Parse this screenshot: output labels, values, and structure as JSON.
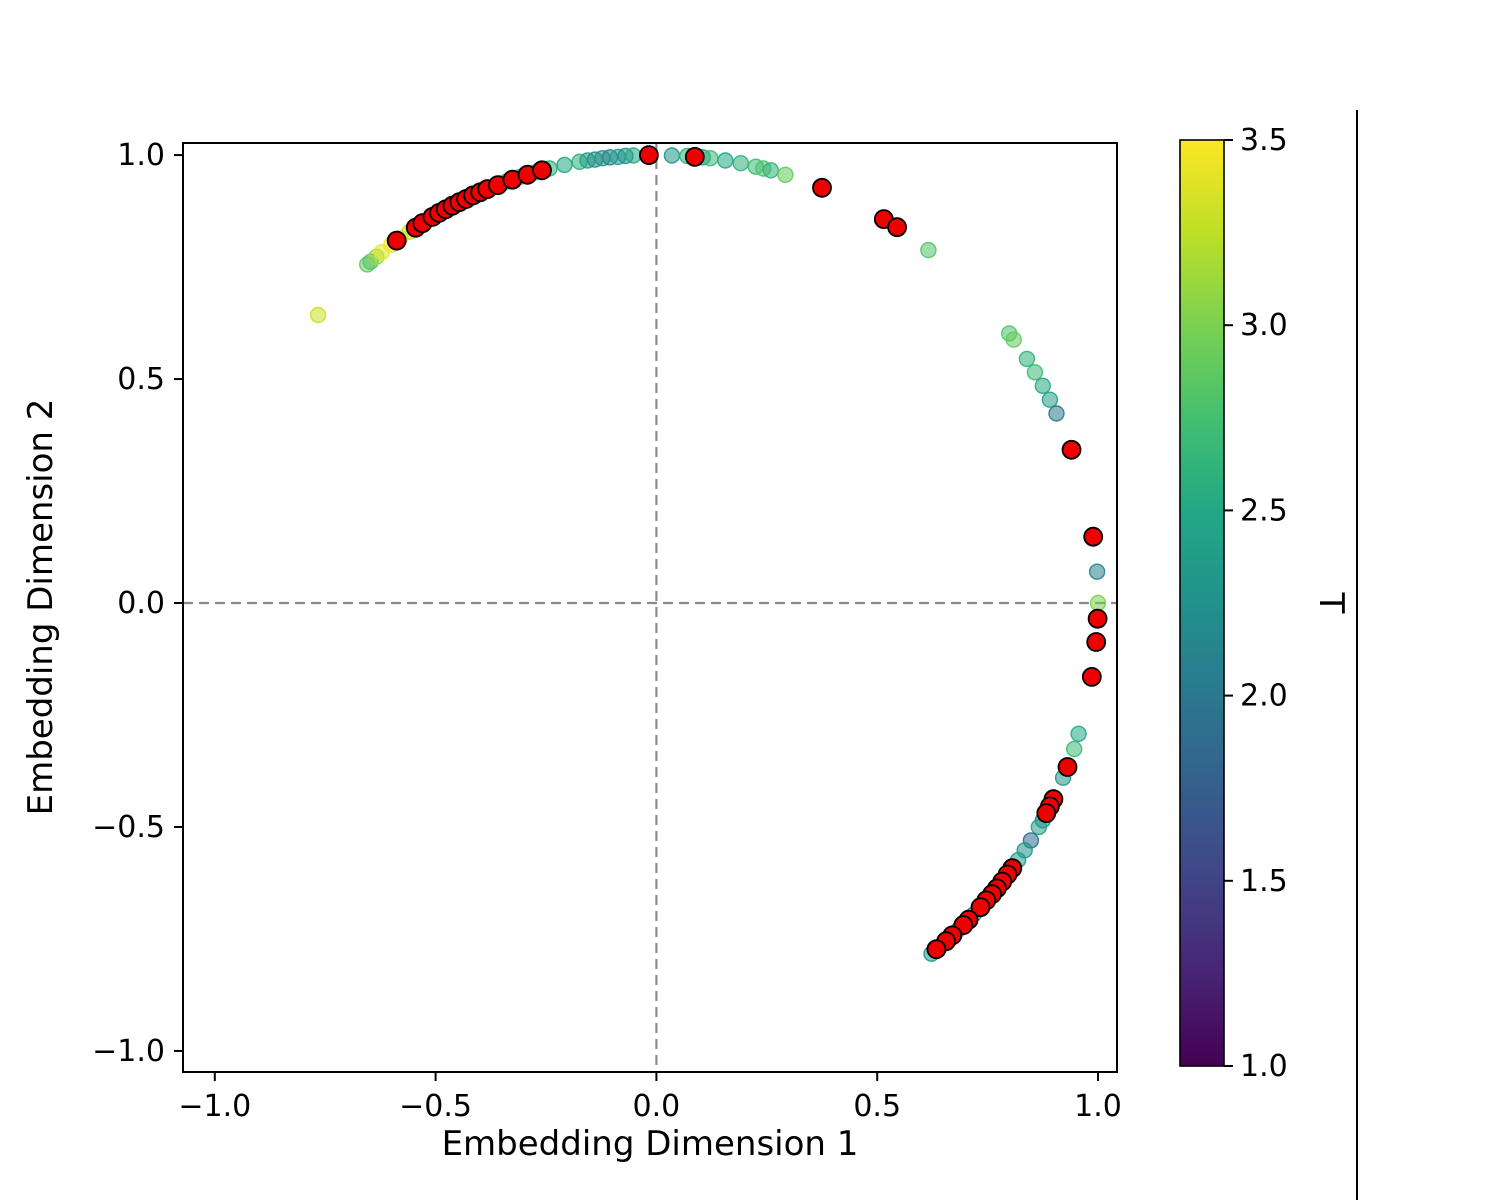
{
  "figure": {
    "background": "#ffffff"
  },
  "chart_data": {
    "type": "scatter",
    "title": "",
    "xlabel": "Embedding Dimension 1",
    "ylabel": "Embedding Dimension 2",
    "xlim": [
      -1.072,
      1.043
    ],
    "ylim": [
      -1.047,
      1.027
    ],
    "grid": false,
    "zero_lines": {
      "color": "#8a8a8a",
      "style": "dashed"
    },
    "xticks": {
      "values": [
        -1.0,
        -0.5,
        0.0,
        0.5,
        1.0
      ],
      "labels": [
        "−1.0",
        "−0.5",
        "0.0",
        "0.5",
        "1.0"
      ]
    },
    "yticks": {
      "values": [
        -1.0,
        -0.5,
        0.0,
        0.5,
        1.0
      ],
      "labels": [
        "−1.0",
        "−0.5",
        "0.0",
        "0.5",
        "1.0"
      ]
    },
    "colorbar": {
      "label": "T",
      "vmin": 1.0,
      "vmax": 3.5,
      "ticks": [
        1.0,
        1.5,
        2.0,
        2.5,
        3.0,
        3.5
      ],
      "tick_labels": [
        "1.0",
        "1.5",
        "2.0",
        "2.5",
        "3.0",
        "3.5"
      ],
      "colormap": "viridis",
      "position": "right"
    },
    "colormap_stops": [
      [
        0.0,
        "#440154"
      ],
      [
        0.1,
        "#482475"
      ],
      [
        0.2,
        "#414487"
      ],
      [
        0.3,
        "#355f8d"
      ],
      [
        0.4,
        "#2a788e"
      ],
      [
        0.5,
        "#21918c"
      ],
      [
        0.6,
        "#22a884"
      ],
      [
        0.7,
        "#44bf70"
      ],
      [
        0.8,
        "#7ad151"
      ],
      [
        0.9,
        "#bddf26"
      ],
      [
        1.0,
        "#fde725"
      ]
    ],
    "series": [
      {
        "name": "embedding-points",
        "marker": "circle",
        "alpha": 0.55,
        "colored_by": "T",
        "format": [
          "x",
          "y",
          "T"
        ],
        "points": [
          [
            -0.766,
            0.643,
            3.3
          ],
          [
            -0.655,
            0.756,
            2.9
          ],
          [
            -0.647,
            0.762,
            2.8
          ],
          [
            -0.634,
            0.773,
            3.1
          ],
          [
            -0.622,
            0.783,
            3.4
          ],
          [
            -0.6,
            0.8,
            3.45
          ],
          [
            -0.58,
            0.815,
            3.4
          ],
          [
            -0.559,
            0.829,
            3.3
          ],
          [
            -0.545,
            0.838,
            3.2
          ],
          [
            -0.53,
            0.848,
            3.35
          ],
          [
            -0.515,
            0.857,
            3.1
          ],
          [
            -0.5,
            0.866,
            3.0
          ],
          [
            -0.485,
            0.875,
            3.2
          ],
          [
            -0.469,
            0.883,
            3.1
          ],
          [
            -0.454,
            0.891,
            3.0
          ],
          [
            -0.438,
            0.899,
            2.9
          ],
          [
            -0.423,
            0.906,
            3.0
          ],
          [
            -0.407,
            0.914,
            2.9
          ],
          [
            -0.391,
            0.92,
            2.8
          ],
          [
            -0.375,
            0.927,
            2.9
          ],
          [
            -0.342,
            0.94,
            2.8
          ],
          [
            -0.309,
            0.951,
            2.7
          ],
          [
            -0.276,
            0.961,
            2.8
          ],
          [
            -0.242,
            0.97,
            2.6
          ],
          [
            -0.208,
            0.978,
            2.5
          ],
          [
            -0.174,
            0.985,
            2.6
          ],
          [
            -0.156,
            0.988,
            2.4
          ],
          [
            -0.139,
            0.99,
            2.2
          ],
          [
            -0.122,
            0.993,
            2.3
          ],
          [
            -0.105,
            0.995,
            2.1
          ],
          [
            -0.087,
            0.996,
            2.4
          ],
          [
            -0.07,
            0.998,
            2.2
          ],
          [
            -0.052,
            0.999,
            2.5
          ],
          [
            0.035,
            0.999,
            2.3
          ],
          [
            0.07,
            0.998,
            2.6
          ],
          [
            0.105,
            0.995,
            2.4
          ],
          [
            0.122,
            0.993,
            2.7
          ],
          [
            0.156,
            0.988,
            2.5
          ],
          [
            0.191,
            0.982,
            2.6
          ],
          [
            0.225,
            0.974,
            2.7
          ],
          [
            0.242,
            0.97,
            2.8
          ],
          [
            0.259,
            0.966,
            2.6
          ],
          [
            0.292,
            0.956,
            2.9
          ],
          [
            0.616,
            0.788,
            2.8
          ],
          [
            0.799,
            0.602,
            2.8
          ],
          [
            0.809,
            0.588,
            2.9
          ],
          [
            0.839,
            0.545,
            2.6
          ],
          [
            0.857,
            0.515,
            2.7
          ],
          [
            0.875,
            0.485,
            2.5
          ],
          [
            0.891,
            0.454,
            2.4
          ],
          [
            0.906,
            0.423,
            2.0
          ],
          [
            0.998,
            0.07,
            2.1
          ],
          [
            1.0,
            0.0,
            3.0
          ],
          [
            0.956,
            -0.292,
            2.5
          ],
          [
            0.946,
            -0.326,
            2.7
          ],
          [
            0.921,
            -0.39,
            2.3
          ],
          [
            0.899,
            -0.438,
            2.4
          ],
          [
            0.875,
            -0.485,
            2.2
          ],
          [
            0.866,
            -0.5,
            2.4
          ],
          [
            0.848,
            -0.53,
            1.9
          ],
          [
            0.834,
            -0.552,
            2.3
          ],
          [
            0.819,
            -0.574,
            2.4
          ],
          [
            0.719,
            -0.695,
            2.3
          ],
          [
            0.682,
            -0.731,
            2.4
          ],
          [
            0.643,
            -0.766,
            2.2
          ],
          [
            0.623,
            -0.783,
            2.3
          ]
        ]
      },
      {
        "name": "highlighted-points",
        "marker": "circle",
        "color": "#ee0000",
        "edge_color": "#000000",
        "format": [
          "x",
          "y"
        ],
        "points": [
          [
            -0.588,
            0.809
          ],
          [
            -0.545,
            0.838
          ],
          [
            -0.53,
            0.848
          ],
          [
            -0.507,
            0.862
          ],
          [
            -0.492,
            0.871
          ],
          [
            -0.477,
            0.879
          ],
          [
            -0.462,
            0.887
          ],
          [
            -0.446,
            0.895
          ],
          [
            -0.431,
            0.902
          ],
          [
            -0.415,
            0.91
          ],
          [
            -0.399,
            0.917
          ],
          [
            -0.383,
            0.924
          ],
          [
            -0.359,
            0.933
          ],
          [
            -0.326,
            0.945
          ],
          [
            -0.292,
            0.956
          ],
          [
            -0.259,
            0.966
          ],
          [
            -0.017,
            1.0
          ],
          [
            0.087,
            0.996
          ],
          [
            0.375,
            0.927
          ],
          [
            0.515,
            0.857
          ],
          [
            0.545,
            0.839
          ],
          [
            0.94,
            0.342
          ],
          [
            0.989,
            0.148
          ],
          [
            0.999,
            -0.035
          ],
          [
            0.996,
            -0.087
          ],
          [
            0.986,
            -0.165
          ],
          [
            0.931,
            -0.366
          ],
          [
            0.899,
            -0.438
          ],
          [
            0.891,
            -0.454
          ],
          [
            0.883,
            -0.469
          ],
          [
            0.806,
            -0.592
          ],
          [
            0.795,
            -0.606
          ],
          [
            0.783,
            -0.622
          ],
          [
            0.771,
            -0.637
          ],
          [
            0.76,
            -0.65
          ],
          [
            0.747,
            -0.664
          ],
          [
            0.734,
            -0.679
          ],
          [
            0.707,
            -0.707
          ],
          [
            0.695,
            -0.719
          ],
          [
            0.67,
            -0.742
          ],
          [
            0.656,
            -0.755
          ],
          [
            0.634,
            -0.773
          ]
        ]
      }
    ]
  }
}
